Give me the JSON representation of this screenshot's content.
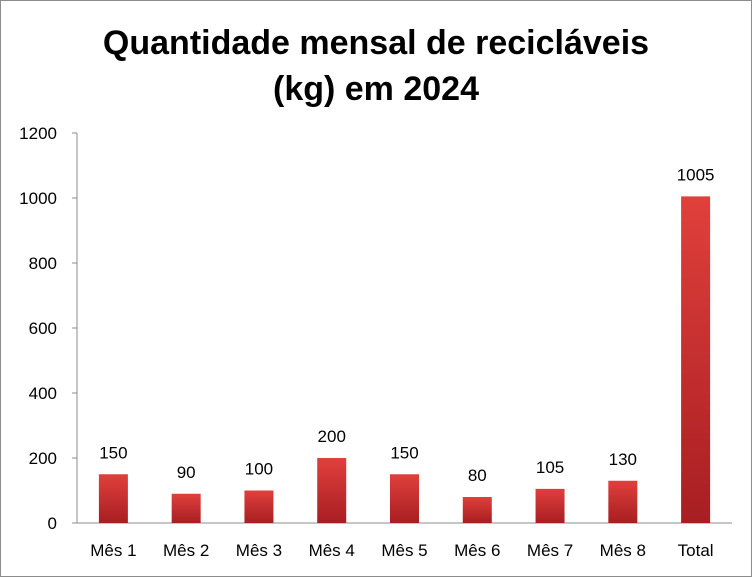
{
  "chart_data": {
    "type": "bar",
    "title_line1": "Quantidade mensal de recicláveis",
    "title_line2": "(kg) em 2024",
    "xlabel": "",
    "ylabel": "",
    "categories": [
      "Mês 1",
      "Mês 2",
      "Mês 3",
      "Mês 4",
      "Mês 5",
      "Mês 6",
      "Mês 7",
      "Mês 8",
      "Total"
    ],
    "values": [
      150,
      90,
      100,
      200,
      150,
      80,
      105,
      130,
      1005
    ],
    "data_labels": [
      "150",
      "90",
      "100",
      "200",
      "150",
      "80",
      "105",
      "130",
      "1005"
    ],
    "ylim": [
      0,
      1200
    ],
    "yticks": [
      0,
      200,
      400,
      600,
      800,
      1000,
      1200
    ],
    "ytick_labels": [
      "0",
      "200",
      "400",
      "600",
      "800",
      "1000",
      "1200"
    ],
    "grid": false,
    "legend": "none",
    "bar_color_light": "#e0403c",
    "bar_color_dark": "#a81e22"
  }
}
